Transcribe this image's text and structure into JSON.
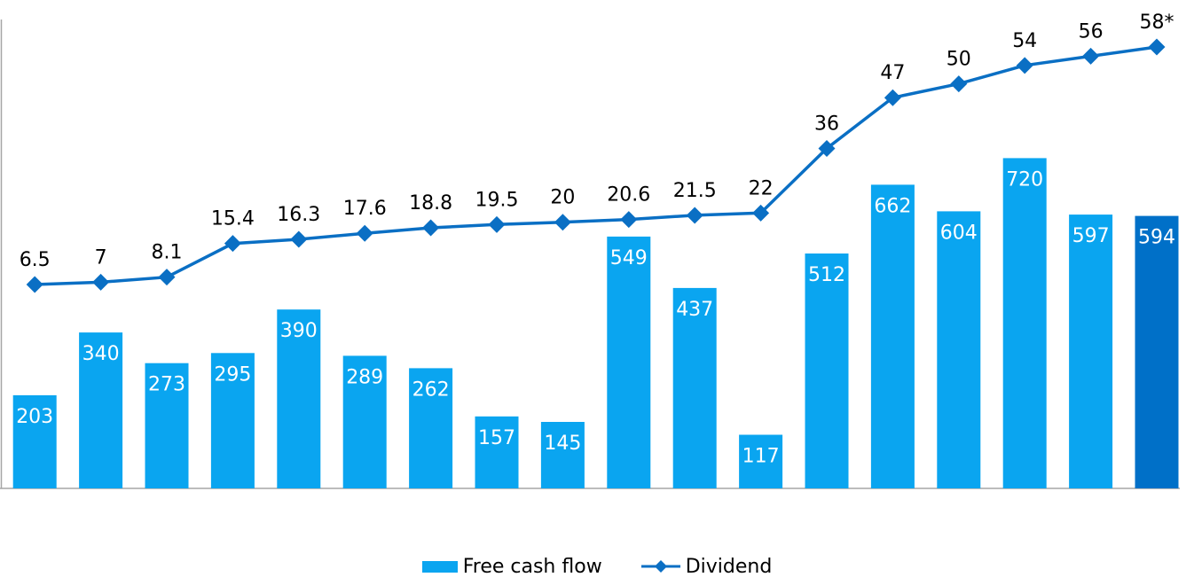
{
  "chart_data": {
    "type": "bar",
    "categories": [
      "",
      "",
      "",
      "",
      "",
      "",
      "",
      "",
      "",
      "",
      "",
      "",
      "",
      "",
      "",
      "",
      "",
      ""
    ],
    "series": [
      {
        "name": "Free cash flow",
        "type": "bar",
        "values": [
          203,
          340,
          273,
          295,
          390,
          289,
          262,
          157,
          145,
          549,
          437,
          117,
          512,
          662,
          604,
          720,
          597,
          594
        ],
        "labels": [
          "203",
          "340",
          "273",
          "295",
          "390",
          "289",
          "262",
          "157",
          "145",
          "549",
          "437",
          "117",
          "512",
          "662",
          "604",
          "720",
          "597",
          "594"
        ],
        "color": "#0aa5f0",
        "highlight_color": "#0070c8",
        "highlight_index": 17
      },
      {
        "name": "Dividend",
        "type": "line",
        "marker": "diamond",
        "values": [
          6.5,
          7,
          8.1,
          15.4,
          16.3,
          17.6,
          18.8,
          19.5,
          20,
          20.6,
          21.5,
          22,
          36,
          47,
          50,
          54,
          56,
          58
        ],
        "labels": [
          "6.5",
          "7",
          "8.1",
          "15.4",
          "16.3",
          "17.6",
          "18.8",
          "19.5",
          "20",
          "20.6",
          "21.5",
          "22",
          "36",
          "47",
          "50",
          "54",
          "56",
          "58*"
        ],
        "color": "#0a6fc4"
      }
    ],
    "bar_axis_max": 1000,
    "line_axis_range": [
      -16.5,
      64
    ],
    "grid": false,
    "legend_position": "bottom"
  },
  "legend": {
    "bar_label": "Free cash flow",
    "line_label": "Dividend"
  }
}
